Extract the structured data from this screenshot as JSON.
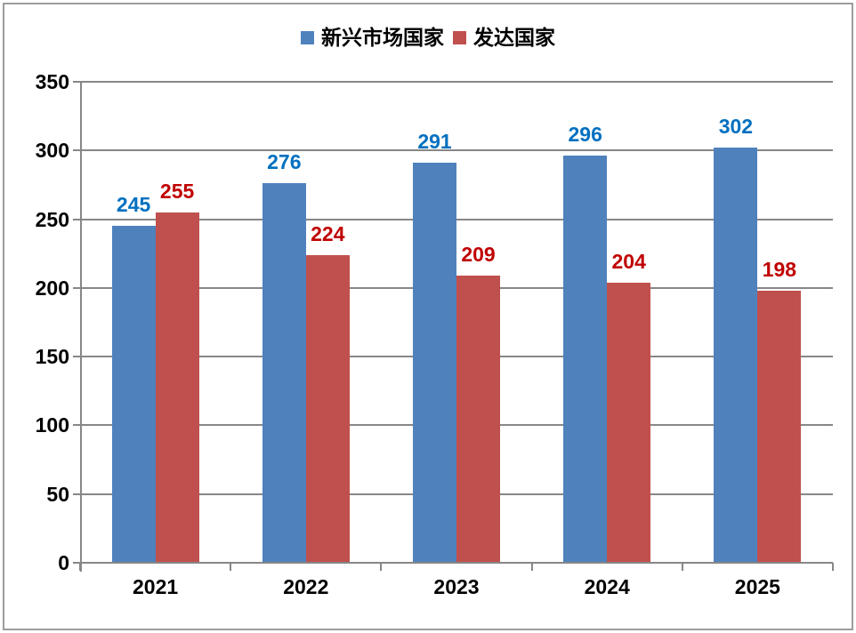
{
  "chart_data": {
    "type": "bar",
    "title": "",
    "categories": [
      "2021",
      "2022",
      "2023",
      "2024",
      "2025"
    ],
    "series": [
      {
        "name": "新兴市场国家",
        "color": "#4F81BD",
        "label_color": "#0070C0",
        "values": [
          245,
          276,
          291,
          296,
          302
        ]
      },
      {
        "name": "发达国家",
        "color": "#C0504D",
        "label_color": "#C00000",
        "values": [
          255,
          224,
          209,
          204,
          198
        ]
      }
    ],
    "ylim": [
      0,
      350
    ],
    "ytick_step": 50,
    "yticks": [
      0,
      50,
      100,
      150,
      200,
      250,
      300,
      350
    ],
    "grid": true,
    "data_labels": true,
    "legend_position": "top"
  },
  "colors": {
    "axis": "#878787",
    "grid": "#878787",
    "frame": "#9d9d9d",
    "background": "#ffffff",
    "tick_label": "#000000"
  }
}
